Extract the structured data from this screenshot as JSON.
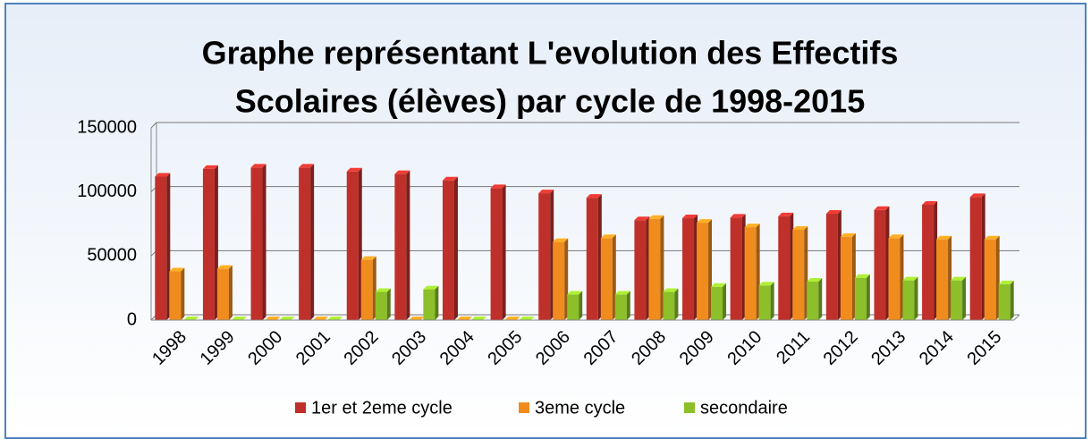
{
  "chart_data": {
    "type": "bar",
    "title": [
      "Graphe représentant L'evolution des Effectifs",
      "Scolaires (élèves) par cycle de 1998-2015"
    ],
    "categories": [
      "1998",
      "1999",
      "2000",
      "2001",
      "2002",
      "2003",
      "2004",
      "2005",
      "2006",
      "2007",
      "2008",
      "2009",
      "2010",
      "2011",
      "2012",
      "2013",
      "2014",
      "2015"
    ],
    "series": [
      {
        "name": "1er  et 2eme cycle",
        "color": "#c0302a",
        "values": [
          112000,
          118000,
          119000,
          119000,
          116000,
          114000,
          109000,
          103000,
          99000,
          95500,
          78000,
          79500,
          80000,
          81000,
          83000,
          86000,
          90000,
          96000
        ]
      },
      {
        "name": "3eme cycle",
        "color": "#f08c1e",
        "values": [
          38000,
          40000,
          0,
          0,
          47000,
          0,
          0,
          0,
          61000,
          64000,
          79000,
          76000,
          72500,
          70500,
          65000,
          64000,
          63000,
          63000
        ]
      },
      {
        "name": "secondaire",
        "color": "#8cbf2a",
        "values": [
          0,
          0,
          0,
          0,
          22000,
          24000,
          0,
          0,
          20000,
          20000,
          22000,
          26000,
          27000,
          30000,
          33000,
          31000,
          31000,
          28000
        ]
      }
    ],
    "ylim": [
      0,
      150000
    ],
    "yticks": [
      0,
      50000,
      100000,
      150000
    ],
    "grid": true,
    "legend": "bottom"
  }
}
